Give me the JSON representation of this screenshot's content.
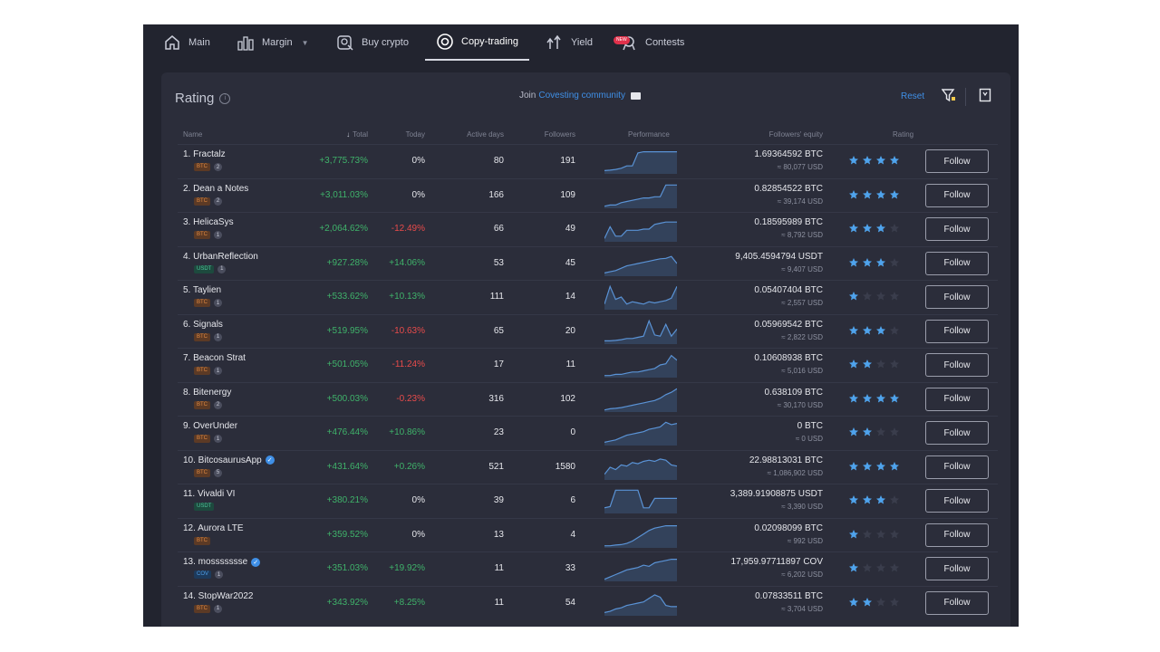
{
  "nav": {
    "items": [
      {
        "label": "Main",
        "icon": "home-icon"
      },
      {
        "label": "Margin",
        "icon": "chart-bars-icon"
      },
      {
        "label": "Buy crypto",
        "icon": "buy-crypto-icon"
      },
      {
        "label": "Copy-trading",
        "icon": "copy-trading-icon"
      },
      {
        "label": "Yield",
        "icon": "yield-icon"
      },
      {
        "label": "Contests",
        "icon": "contests-icon",
        "badge": "NEW"
      }
    ],
    "active": "Copy-trading"
  },
  "panel": {
    "title": "Rating",
    "join_prefix": "Join",
    "join_link": "Covesting community",
    "reset_label": "Reset"
  },
  "table": {
    "headers": {
      "name": "Name",
      "total": "Total",
      "today": "Today",
      "active_days": "Active days",
      "followers": "Followers",
      "performance": "Performance",
      "followers_equity": "Followers' equity",
      "rating": "Rating"
    },
    "follow_label": "Follow",
    "rows": [
      {
        "name": "1. Fractalz",
        "verified": false,
        "tag": "BTC",
        "count": "2",
        "total": "+3,775.73%",
        "today": "0%",
        "days": "80",
        "followers": "191",
        "eq": "1.69364592 BTC",
        "eq_usd": "≈ 80,077 USD",
        "rating": 4,
        "perf": [
          0.1,
          0.12,
          0.15,
          0.2,
          0.3,
          0.3,
          0.85,
          0.9,
          0.9,
          0.9,
          0.9,
          0.9,
          0.9,
          0.9
        ]
      },
      {
        "name": "2. Dean a Notes",
        "verified": false,
        "tag": "BTC",
        "count": "2",
        "total": "+3,011.03%",
        "today": "0%",
        "days": "166",
        "followers": "109",
        "eq": "0.82854522 BTC",
        "eq_usd": "≈ 39,174 USD",
        "rating": 4,
        "perf": [
          0.05,
          0.1,
          0.1,
          0.2,
          0.25,
          0.3,
          0.35,
          0.4,
          0.4,
          0.45,
          0.45,
          0.95,
          0.95,
          0.95
        ]
      },
      {
        "name": "3. HelicaSys",
        "verified": false,
        "tag": "BTC",
        "count": "1",
        "total": "+2,064.62%",
        "today": "-12.49%",
        "days": "66",
        "followers": "49",
        "eq": "0.18595989 BTC",
        "eq_usd": "≈ 8,792 USD",
        "rating": 3,
        "perf": [
          0.1,
          0.6,
          0.2,
          0.2,
          0.45,
          0.45,
          0.45,
          0.5,
          0.5,
          0.7,
          0.75,
          0.8,
          0.8,
          0.8
        ]
      },
      {
        "name": "4. UrbanReflection",
        "verified": false,
        "tag": "USDT",
        "count": "1",
        "total": "+927.28%",
        "today": "+14.06%",
        "days": "53",
        "followers": "45",
        "eq": "9,405.4594794 USDT",
        "eq_usd": "≈ 9,407 USD",
        "rating": 3,
        "perf": [
          0.1,
          0.15,
          0.2,
          0.3,
          0.4,
          0.45,
          0.5,
          0.55,
          0.6,
          0.65,
          0.7,
          0.72,
          0.8,
          0.5
        ]
      },
      {
        "name": "5. Taylien",
        "verified": false,
        "tag": "BTC",
        "count": "1",
        "total": "+533.62%",
        "today": "+10.13%",
        "days": "111",
        "followers": "14",
        "eq": "0.05407404 BTC",
        "eq_usd": "≈ 2,557 USD",
        "rating": 1,
        "perf": [
          0.2,
          0.95,
          0.4,
          0.5,
          0.2,
          0.3,
          0.25,
          0.2,
          0.3,
          0.25,
          0.3,
          0.35,
          0.45,
          0.95
        ]
      },
      {
        "name": "6. Signals",
        "verified": false,
        "tag": "BTC",
        "count": "1",
        "total": "+519.95%",
        "today": "-10.63%",
        "days": "65",
        "followers": "20",
        "eq": "0.05969542 BTC",
        "eq_usd": "≈ 2,822 USD",
        "rating": 3,
        "perf": [
          0.1,
          0.1,
          0.12,
          0.15,
          0.2,
          0.2,
          0.25,
          0.3,
          0.95,
          0.35,
          0.3,
          0.8,
          0.3,
          0.6
        ]
      },
      {
        "name": "7. Beacon Strat",
        "verified": false,
        "tag": "BTC",
        "count": "1",
        "total": "+501.05%",
        "today": "-11.24%",
        "days": "17",
        "followers": "11",
        "eq": "0.10608938 BTC",
        "eq_usd": "≈ 5,016 USD",
        "rating": 2,
        "perf": [
          0.05,
          0.05,
          0.1,
          0.1,
          0.15,
          0.2,
          0.2,
          0.25,
          0.3,
          0.35,
          0.5,
          0.55,
          0.9,
          0.7
        ]
      },
      {
        "name": "8. Bitenergy",
        "verified": false,
        "tag": "BTC",
        "count": "2",
        "total": "+500.03%",
        "today": "-0.23%",
        "days": "316",
        "followers": "102",
        "eq": "0.638109 BTC",
        "eq_usd": "≈ 30,170 USD",
        "rating": 4,
        "perf": [
          0.05,
          0.1,
          0.12,
          0.15,
          0.2,
          0.25,
          0.3,
          0.35,
          0.4,
          0.45,
          0.55,
          0.7,
          0.8,
          0.95
        ]
      },
      {
        "name": "9. OverUnder",
        "verified": false,
        "tag": "BTC",
        "count": "1",
        "total": "+476.44%",
        "today": "+10.86%",
        "days": "23",
        "followers": "0",
        "eq": "0 BTC",
        "eq_usd": "≈ 0 USD",
        "rating": 2,
        "perf": [
          0.1,
          0.15,
          0.2,
          0.3,
          0.4,
          0.45,
          0.5,
          0.55,
          0.65,
          0.7,
          0.75,
          0.95,
          0.85,
          0.9
        ]
      },
      {
        "name": "10. BitcosaurusApp",
        "verified": true,
        "tag": "BTC",
        "count": "5",
        "total": "+431.64%",
        "today": "+0.26%",
        "days": "521",
        "followers": "1580",
        "eq": "22.98813031 BTC",
        "eq_usd": "≈ 1,086,902 USD",
        "rating": 4,
        "perf": [
          0.2,
          0.5,
          0.4,
          0.6,
          0.55,
          0.7,
          0.65,
          0.75,
          0.8,
          0.75,
          0.85,
          0.8,
          0.6,
          0.55
        ]
      },
      {
        "name": "11. Vivaldi VI",
        "verified": false,
        "tag": "USDT",
        "count": "",
        "total": "+380.21%",
        "today": "0%",
        "days": "39",
        "followers": "6",
        "eq": "3,389.91908875 USDT",
        "eq_usd": "≈ 3,390 USD",
        "rating": 3,
        "perf": [
          0.2,
          0.25,
          0.95,
          0.95,
          0.95,
          0.95,
          0.95,
          0.2,
          0.2,
          0.6,
          0.6,
          0.6,
          0.6,
          0.6
        ]
      },
      {
        "name": "12. Aurora LTE",
        "verified": false,
        "tag": "BTC",
        "count": "",
        "total": "+359.52%",
        "today": "0%",
        "days": "13",
        "followers": "4",
        "eq": "0.02098099 BTC",
        "eq_usd": "≈ 992 USD",
        "rating": 1,
        "perf": [
          0.05,
          0.05,
          0.08,
          0.1,
          0.15,
          0.25,
          0.4,
          0.55,
          0.7,
          0.8,
          0.85,
          0.9,
          0.9,
          0.9
        ]
      },
      {
        "name": "13. mossssssse",
        "verified": true,
        "tag": "COV",
        "count": "1",
        "total": "+351.03%",
        "today": "+19.92%",
        "days": "11",
        "followers": "33",
        "eq": "17,959.97711897 COV",
        "eq_usd": "≈ 6,202 USD",
        "rating": 1,
        "perf": [
          0.05,
          0.15,
          0.25,
          0.35,
          0.45,
          0.5,
          0.55,
          0.65,
          0.6,
          0.75,
          0.8,
          0.85,
          0.9,
          0.9
        ]
      },
      {
        "name": "14. StopWar2022",
        "verified": false,
        "tag": "BTC",
        "count": "1",
        "total": "+343.92%",
        "today": "+8.25%",
        "days": "11",
        "followers": "54",
        "eq": "0.07833511 BTC",
        "eq_usd": "≈ 3,704 USD",
        "rating": 2,
        "perf": [
          0.1,
          0.15,
          0.25,
          0.3,
          0.4,
          0.45,
          0.5,
          0.55,
          0.7,
          0.85,
          0.75,
          0.4,
          0.35,
          0.35
        ]
      }
    ]
  },
  "colors": {
    "accent": "#3f8fe6",
    "positive": "#3fb26a",
    "negative": "#e84b4b",
    "star": "#4fa3ec",
    "star_empty": "#3a3d4c"
  }
}
